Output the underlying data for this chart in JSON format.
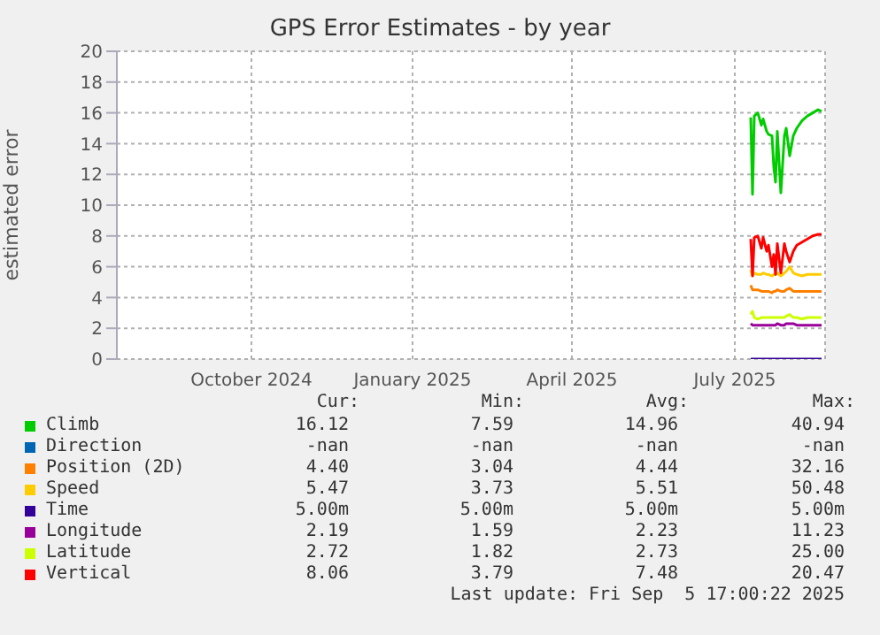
{
  "chart_data": {
    "type": "line",
    "title": "GPS Error Estimates - by year",
    "ylabel": "estimated error",
    "x": [
      "2025-07-25",
      "2025-07-26",
      "2025-07-27",
      "2025-07-29",
      "2025-07-31",
      "2025-08-01",
      "2025-08-03",
      "2025-08-04",
      "2025-08-06",
      "2025-08-07",
      "2025-08-08",
      "2025-08-09",
      "2025-08-11",
      "2025-08-13",
      "2025-08-14",
      "2025-08-16",
      "2025-08-18",
      "2025-08-20",
      "2025-08-23",
      "2025-08-26",
      "2025-08-29",
      "2025-09-01",
      "2025-09-03"
    ],
    "series": [
      {
        "name": "Climb",
        "color": "#00cc00",
        "values": [
          15.7,
          10.7,
          15.8,
          16.0,
          15.2,
          15.6,
          14.8,
          14.6,
          14.5,
          12.5,
          11.5,
          14.8,
          10.8,
          14.5,
          15.0,
          13.2,
          14.5,
          15.0,
          15.5,
          15.8,
          16.0,
          16.2,
          16.1
        ]
      },
      {
        "name": "Direction",
        "color": "#0066b3",
        "values": [
          null,
          null,
          null,
          null,
          null,
          null,
          null,
          null,
          null,
          null,
          null,
          null,
          null,
          null,
          null,
          null,
          null,
          null,
          null,
          null,
          null,
          null,
          null
        ]
      },
      {
        "name": "Position (2D)",
        "color": "#ff8000",
        "values": [
          4.8,
          4.5,
          4.5,
          4.5,
          4.4,
          4.4,
          4.4,
          4.4,
          4.3,
          4.4,
          4.4,
          4.5,
          4.4,
          4.4,
          4.5,
          4.6,
          4.4,
          4.4,
          4.4,
          4.4,
          4.4,
          4.4,
          4.4
        ]
      },
      {
        "name": "Speed",
        "color": "#ffcc00",
        "values": [
          5.8,
          5.4,
          5.6,
          5.5,
          5.5,
          5.6,
          5.5,
          5.5,
          5.4,
          5.5,
          5.5,
          5.6,
          5.4,
          5.6,
          5.7,
          6.0,
          5.6,
          5.5,
          5.4,
          5.5,
          5.5,
          5.5,
          5.5
        ]
      },
      {
        "name": "Time",
        "color": "#330099",
        "values": [
          0,
          0,
          0,
          0,
          0,
          0,
          0,
          0,
          0,
          0,
          0,
          0,
          0,
          0,
          0,
          0,
          0,
          0,
          0,
          0,
          0,
          0,
          0
        ]
      },
      {
        "name": "Longitude",
        "color": "#990099",
        "values": [
          2.3,
          2.2,
          2.2,
          2.2,
          2.2,
          2.2,
          2.2,
          2.2,
          2.2,
          2.2,
          2.2,
          2.3,
          2.2,
          2.2,
          2.3,
          2.3,
          2.3,
          2.2,
          2.2,
          2.2,
          2.2,
          2.2,
          2.2
        ]
      },
      {
        "name": "Latitude",
        "color": "#ccff00",
        "values": [
          2.9,
          3.1,
          2.7,
          2.6,
          2.7,
          2.7,
          2.7,
          2.7,
          2.7,
          2.7,
          2.7,
          2.7,
          2.7,
          2.7,
          2.8,
          2.9,
          2.7,
          2.7,
          2.6,
          2.7,
          2.7,
          2.7,
          2.7
        ]
      },
      {
        "name": "Vertical",
        "color": "#ff0000",
        "values": [
          7.8,
          5.4,
          7.9,
          8.0,
          7.2,
          7.9,
          7.0,
          7.4,
          6.0,
          6.8,
          5.5,
          7.5,
          5.6,
          7.5,
          7.0,
          6.3,
          7.0,
          7.4,
          7.6,
          7.8,
          8.0,
          8.1,
          8.1
        ]
      }
    ],
    "xlim": [
      "2024-08-01",
      "2025-09-05"
    ],
    "xticks": [
      {
        "value": "2024-10-16",
        "label": "October 2024"
      },
      {
        "value": "2025-01-15",
        "label": "January 2025"
      },
      {
        "value": "2025-04-15",
        "label": "April 2025"
      },
      {
        "value": "2025-07-16",
        "label": "July 2025"
      }
    ],
    "ylim": [
      0,
      20
    ],
    "yticks": [
      0,
      2,
      4,
      6,
      8,
      10,
      12,
      14,
      16,
      18,
      20
    ],
    "grid": true,
    "legend": "bottom",
    "annotations": [
      "Cur:",
      "Min:",
      "Avg:",
      "Max:",
      "16.12",
      "7.59",
      "14.96",
      "40.94",
      "-nan",
      "-nan",
      "-nan",
      "-nan",
      "4.40",
      "3.04",
      "4.44",
      "32.16",
      "5.47",
      "3.73",
      "5.51",
      "50.48",
      "5.00m",
      "5.00m",
      "5.00m",
      "5.00m",
      "2.19",
      "1.59",
      "2.23",
      "11.23",
      "2.72",
      "1.82",
      "2.73",
      "25.00",
      "8.06",
      "3.79",
      "7.48",
      "20.47",
      "Last update: Fri Sep  5 17:00:22 2025"
    ]
  }
}
